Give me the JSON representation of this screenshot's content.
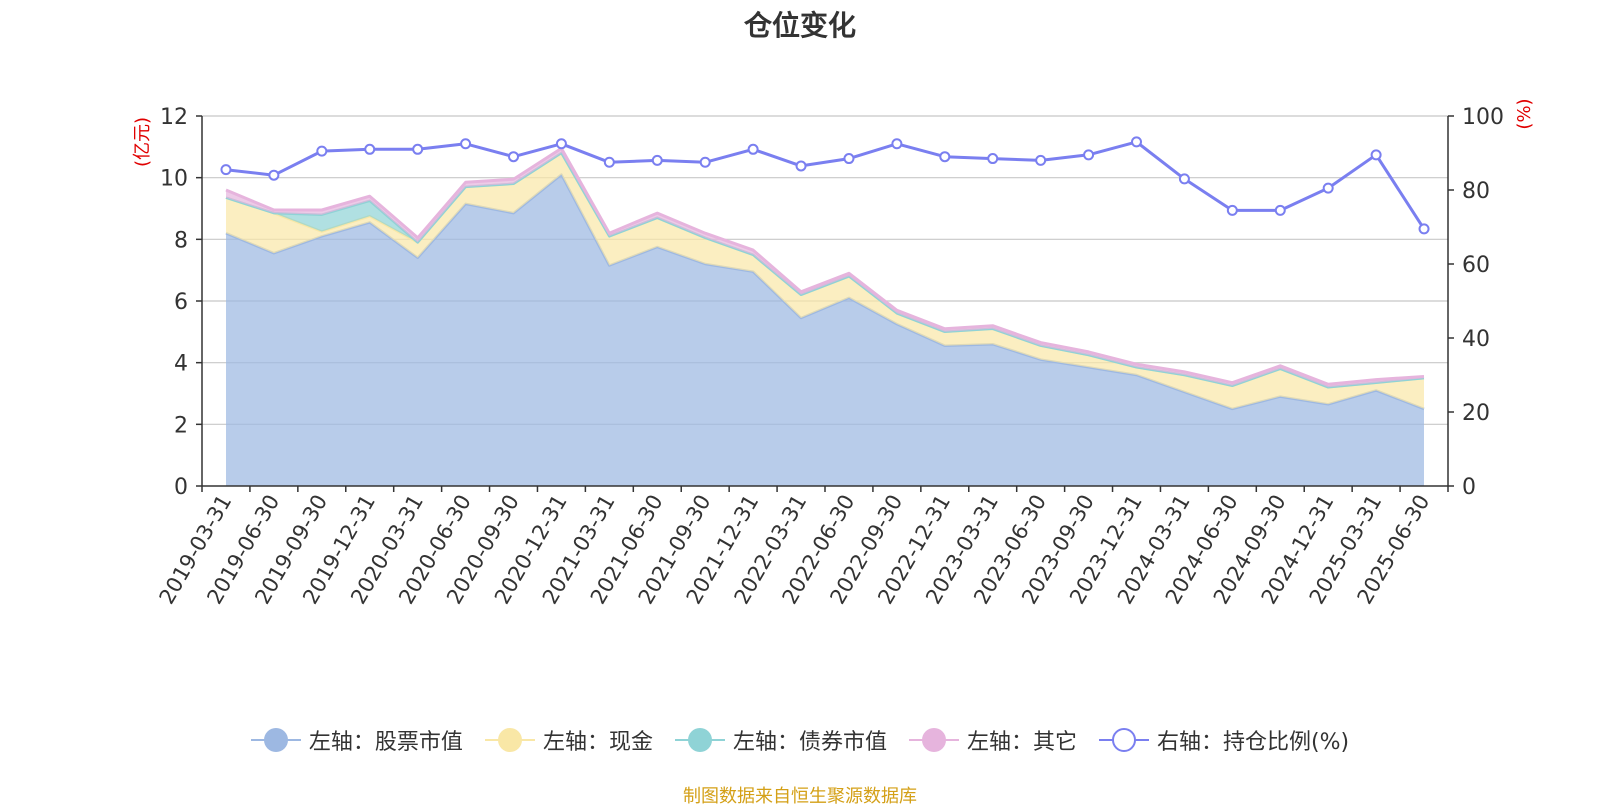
{
  "title": "仓位变化",
  "source_note": "制图数据来自恒生聚源数据库",
  "colors": {
    "stock": "#9db8e2",
    "cash": "#f9e7a6",
    "bond": "#8fd3d6",
    "other": "#e6b4dd",
    "ratio": "#7a7ff0",
    "axis_unit": "#e00000",
    "grid": "#c8c8c8",
    "axis": "#333333"
  },
  "legend": [
    {
      "key": "stock",
      "label": "左轴：股票市值"
    },
    {
      "key": "cash",
      "label": "左轴：现金"
    },
    {
      "key": "bond",
      "label": "左轴：债券市值"
    },
    {
      "key": "other",
      "label": "左轴：其它"
    },
    {
      "key": "ratio",
      "label": "右轴：持仓比例(%)"
    }
  ],
  "chart_data": {
    "type": "area",
    "categories": [
      "2019-03-31",
      "2019-06-30",
      "2019-09-30",
      "2019-12-31",
      "2020-03-31",
      "2020-06-30",
      "2020-09-30",
      "2020-12-31",
      "2021-03-31",
      "2021-06-30",
      "2021-09-30",
      "2021-12-31",
      "2022-03-31",
      "2022-06-30",
      "2022-09-30",
      "2022-12-31",
      "2023-03-31",
      "2023-06-30",
      "2023-09-30",
      "2023-12-31",
      "2024-03-31",
      "2024-06-30",
      "2024-09-30",
      "2024-12-31",
      "2025-03-31",
      "2025-06-30"
    ],
    "left_axis": {
      "unit": "(亿元)",
      "ylim": [
        0,
        12
      ],
      "ticks": [
        0,
        2,
        4,
        6,
        8,
        10,
        12
      ]
    },
    "right_axis": {
      "unit": "(%)",
      "ylim": [
        0,
        100
      ],
      "ticks": [
        0,
        20,
        40,
        60,
        80,
        100
      ]
    },
    "stacked": true,
    "grid": true,
    "legend_position": "bottom",
    "series": [
      {
        "key": "stock",
        "name": "左轴：股票市值",
        "axis": "left",
        "values": [
          8.2,
          7.55,
          8.1,
          8.55,
          7.4,
          9.15,
          8.85,
          10.1,
          7.15,
          7.75,
          7.2,
          6.95,
          5.45,
          6.1,
          5.25,
          4.55,
          4.6,
          4.1,
          3.85,
          3.6,
          3.05,
          2.5,
          2.9,
          2.65,
          3.1,
          2.5
        ]
      },
      {
        "key": "cash",
        "name": "左轴：现金",
        "axis": "left",
        "values": [
          1.15,
          1.3,
          0.15,
          0.2,
          0.5,
          0.55,
          0.95,
          0.7,
          0.95,
          0.95,
          0.85,
          0.55,
          0.75,
          0.7,
          0.35,
          0.45,
          0.5,
          0.45,
          0.4,
          0.25,
          0.55,
          0.75,
          0.9,
          0.55,
          0.25,
          1.0
        ]
      },
      {
        "key": "bond",
        "name": "左轴：债券市值",
        "axis": "left",
        "values": [
          0,
          0,
          0.55,
          0.5,
          0,
          0,
          0,
          0,
          0,
          0,
          0,
          0,
          0,
          0,
          0,
          0,
          0,
          0,
          0,
          0,
          0,
          0,
          0,
          0,
          0,
          0
        ]
      },
      {
        "key": "other",
        "name": "左轴：其它",
        "axis": "left",
        "values": [
          0.25,
          0.1,
          0.15,
          0.15,
          0.15,
          0.15,
          0.15,
          0.15,
          0.1,
          0.15,
          0.15,
          0.15,
          0.1,
          0.1,
          0.1,
          0.1,
          0.1,
          0.1,
          0.1,
          0.1,
          0.1,
          0.1,
          0.1,
          0.1,
          0.1,
          0.05
        ]
      },
      {
        "key": "ratio",
        "name": "右轴：持仓比例(%)",
        "axis": "right",
        "type": "line",
        "values": [
          85.5,
          84,
          90.5,
          91,
          91,
          92.5,
          89,
          92.5,
          87.5,
          88,
          87.5,
          91,
          86.5,
          88.5,
          92.5,
          89,
          88.5,
          88,
          89.5,
          93,
          83,
          74.5,
          74.5,
          80.5,
          89.5,
          69.5
        ]
      }
    ]
  }
}
